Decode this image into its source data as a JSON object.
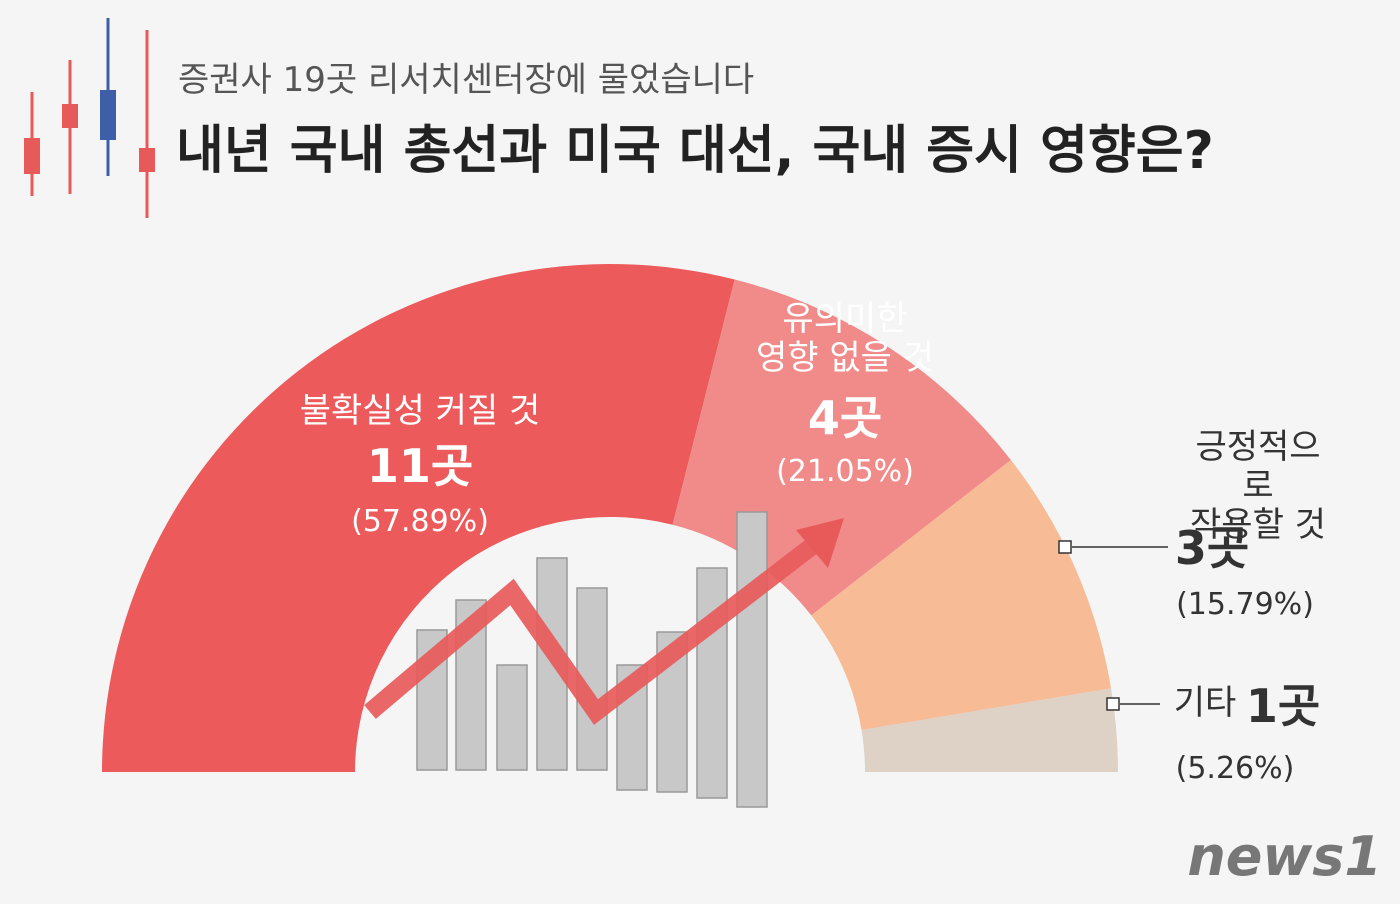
{
  "chart_data": {
    "type": "half-donut",
    "subtitle": "증권사 19곳 리서치센터장에 물었습니다",
    "title": "내년 국내 총선과 미국 대선, 국내 증시 영향은?",
    "categories": [
      "불확실성 커질 것",
      "유의미한\n영향 없을 것",
      "긍정적으로\n작용할 것",
      "기타"
    ],
    "values": [
      11,
      4,
      3,
      1
    ],
    "value_labels": [
      "11곳",
      "4곳",
      "3곳",
      "1곳"
    ],
    "percentages": [
      57.89,
      21.05,
      15.79,
      5.26
    ],
    "percentage_labels": [
      "(57.89%)",
      "(21.05%)",
      "(15.79%)",
      "(5.26%)"
    ],
    "colors": [
      "#ec5a5b",
      "#f08b8a",
      "#f7bb95",
      "#ddd2c5"
    ],
    "source": "news1"
  }
}
